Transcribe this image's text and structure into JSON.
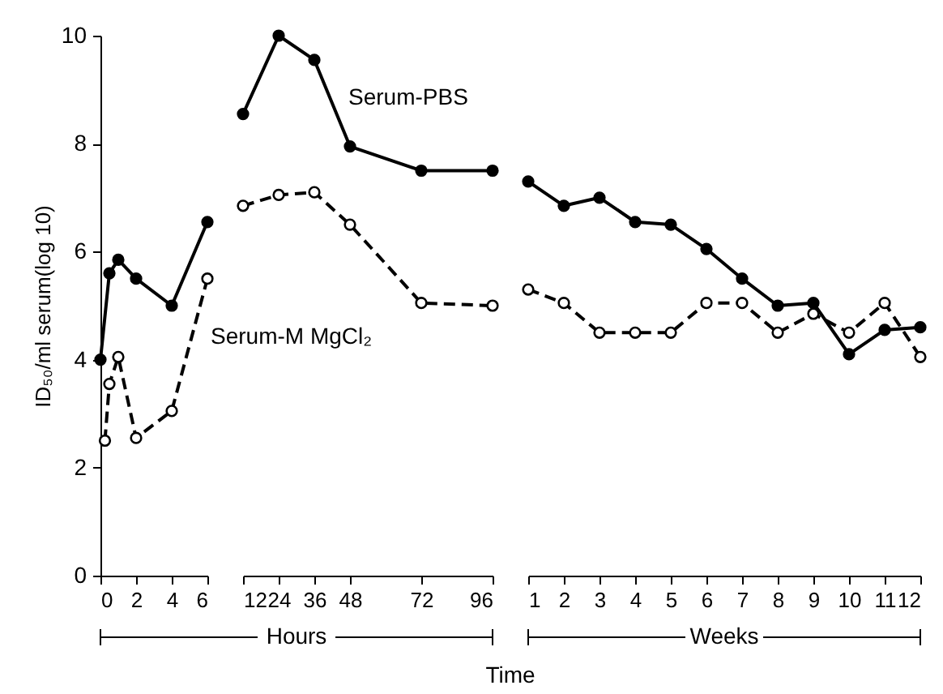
{
  "chart_data": [
    {
      "type": "line",
      "ylabel": "ID₅₀/ml serum(log 10)",
      "xlim": [
        0,
        6
      ],
      "xticks": [
        0,
        2,
        4,
        6
      ],
      "ylim": [
        0,
        10
      ],
      "yticks": [
        0,
        2,
        4,
        6,
        8,
        10
      ],
      "grid": false,
      "marker": "circle",
      "series": [
        {
          "color": "#000000",
          "line_style": "solid",
          "x": [
            0,
            0.5,
            1,
            2,
            4,
            6
          ],
          "values": [
            4.0,
            5.6,
            5.85,
            5.5,
            5.0,
            6.55
          ]
        },
        {
          "color": "#000000",
          "line_style": "dashed",
          "x": [
            0.25,
            0.5,
            1,
            2,
            4,
            6
          ],
          "values": [
            2.5,
            3.55,
            4.05,
            2.55,
            3.05,
            5.5
          ]
        }
      ]
    },
    {
      "type": "line",
      "xlabel": "Time",
      "annotations": [
        "Hours"
      ],
      "tick_labels": "x",
      "xlim": [
        12,
        96
      ],
      "xticks": [
        12,
        24,
        36,
        48,
        72,
        96
      ],
      "ylim": [
        0,
        10
      ],
      "grid": false,
      "marker": "circle",
      "series": [
        {
          "name": "Serum-PBS",
          "color": "#000000",
          "line_style": "solid",
          "x": [
            12,
            24,
            36,
            48,
            72,
            96
          ],
          "values": [
            8.55,
            10.0,
            9.55,
            7.95,
            7.5,
            7.5
          ]
        },
        {
          "name": "Serum-M MgCl₂",
          "color": "#000000",
          "line_style": "dashed",
          "x": [
            12,
            24,
            36,
            48,
            72,
            96
          ],
          "values": [
            6.85,
            7.05,
            7.1,
            6.5,
            5.05,
            5.0
          ]
        }
      ]
    },
    {
      "type": "line",
      "annotations": [
        "Weeks"
      ],
      "tick_labels": "x",
      "xlim": [
        1,
        12
      ],
      "xticks": [
        1,
        2,
        3,
        4,
        5,
        6,
        7,
        8,
        9,
        10,
        11,
        12
      ],
      "ylim": [
        0,
        10
      ],
      "grid": false,
      "marker": "circle",
      "series": [
        {
          "color": "#000000",
          "line_style": "solid",
          "x": [
            1,
            2,
            3,
            4,
            5,
            6,
            7,
            8,
            9,
            10,
            11,
            12
          ],
          "values": [
            7.3,
            6.85,
            7.0,
            6.55,
            6.5,
            6.05,
            5.5,
            5.0,
            5.05,
            4.1,
            4.55,
            4.6
          ]
        },
        {
          "color": "#000000",
          "line_style": "dashed",
          "x": [
            1,
            2,
            3,
            4,
            5,
            6,
            7,
            8,
            9,
            10,
            11,
            12
          ],
          "values": [
            5.3,
            5.05,
            4.5,
            4.5,
            4.5,
            5.05,
            5.05,
            4.5,
            4.85,
            4.5,
            5.05,
            4.05
          ]
        }
      ]
    }
  ]
}
